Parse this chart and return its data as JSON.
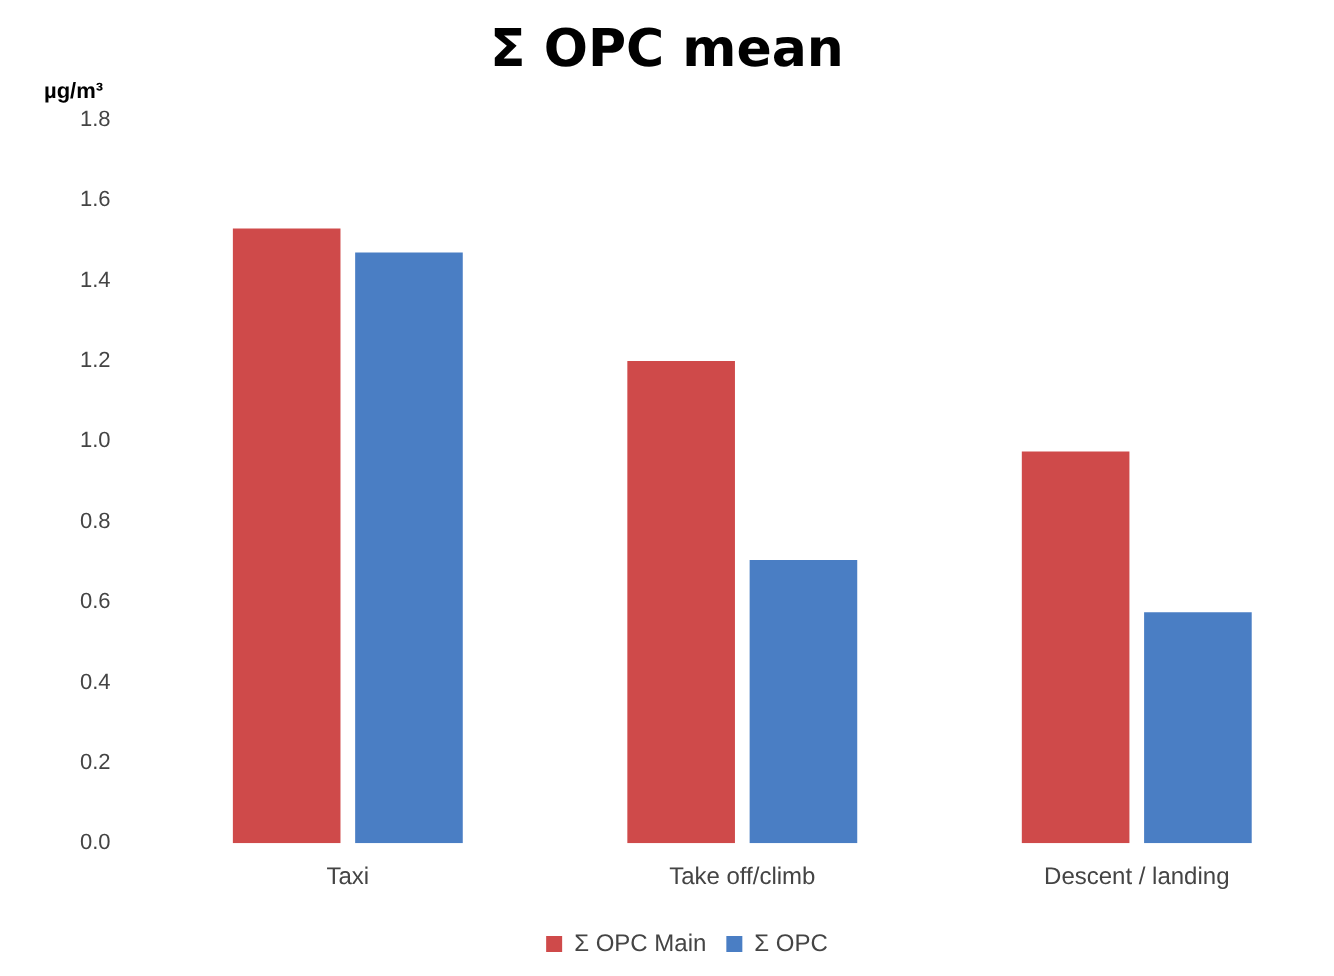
{
  "chart_data": {
    "type": "bar",
    "title": "Σ OPC mean",
    "ylabel": "µg/m³",
    "categories": [
      "Taxi",
      "Take off/climb",
      "Descent / landing"
    ],
    "series": [
      {
        "name": "Σ OPC Main",
        "color": "#cf4a4a",
        "values": [
          1.53,
          1.2,
          0.975
        ]
      },
      {
        "name": "Σ OPC",
        "color": "#4a7ec4",
        "values": [
          1.47,
          0.705,
          0.575
        ]
      }
    ],
    "ylim": [
      0,
      1.8
    ],
    "yticks": [
      {
        "value": 0,
        "label": "0.0"
      },
      {
        "value": 0.2,
        "label": "0.2"
      },
      {
        "value": 0.4,
        "label": "0.4"
      },
      {
        "value": 0.6,
        "label": "0.6"
      },
      {
        "value": 0.8,
        "label": "0.8"
      },
      {
        "value": 1,
        "label": "1.0"
      },
      {
        "value": 1.2,
        "label": "1.2"
      },
      {
        "value": 1.4,
        "label": "1.4"
      },
      {
        "value": 1.6,
        "label": "1.6"
      },
      {
        "value": 1.8,
        "label": "1.8"
      }
    ],
    "grid": false,
    "legend": "bottom"
  }
}
